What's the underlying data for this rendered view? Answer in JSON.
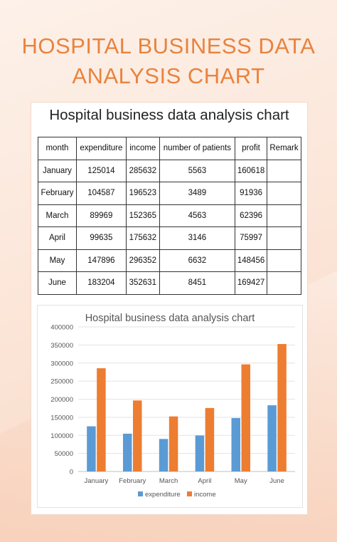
{
  "page": {
    "title_line1": "HOSPITAL BUSINESS DATA",
    "title_line2": "ANALYSIS CHART",
    "card_title": "Hospital business data analysis chart"
  },
  "table": {
    "headers": [
      "month",
      "expenditure",
      "income",
      "number of patients",
      "profit",
      "Remark"
    ],
    "rows": [
      [
        "January",
        "125014",
        "285632",
        "5563",
        "160618",
        ""
      ],
      [
        "February",
        "104587",
        "196523",
        "3489",
        "91936",
        ""
      ],
      [
        "March",
        "89969",
        "152365",
        "4563",
        "62396",
        ""
      ],
      [
        "April",
        "99635",
        "175632",
        "3146",
        "75997",
        ""
      ],
      [
        "May",
        "147896",
        "296352",
        "6632",
        "148456",
        ""
      ],
      [
        "June",
        "183204",
        "352631",
        "8451",
        "169427",
        ""
      ]
    ]
  },
  "chart_data": {
    "type": "bar",
    "title": "Hospital business data analysis chart",
    "categories": [
      "January",
      "February",
      "March",
      "April",
      "May",
      "June"
    ],
    "series": [
      {
        "name": "expenditure",
        "values": [
          125014,
          104587,
          89969,
          99635,
          147896,
          183204
        ]
      },
      {
        "name": "income",
        "values": [
          285632,
          196523,
          152365,
          175632,
          296352,
          352631
        ]
      }
    ],
    "ylim": [
      0,
      400000
    ],
    "yticks": [
      0,
      50000,
      100000,
      150000,
      200000,
      250000,
      300000,
      350000,
      400000
    ],
    "grid": true,
    "legend": "bottom",
    "colors": {
      "expenditure": "#5b9bd5",
      "income": "#ed7d31"
    }
  },
  "colors": {
    "title": "#e8833f",
    "background": "#fbe4d6"
  }
}
